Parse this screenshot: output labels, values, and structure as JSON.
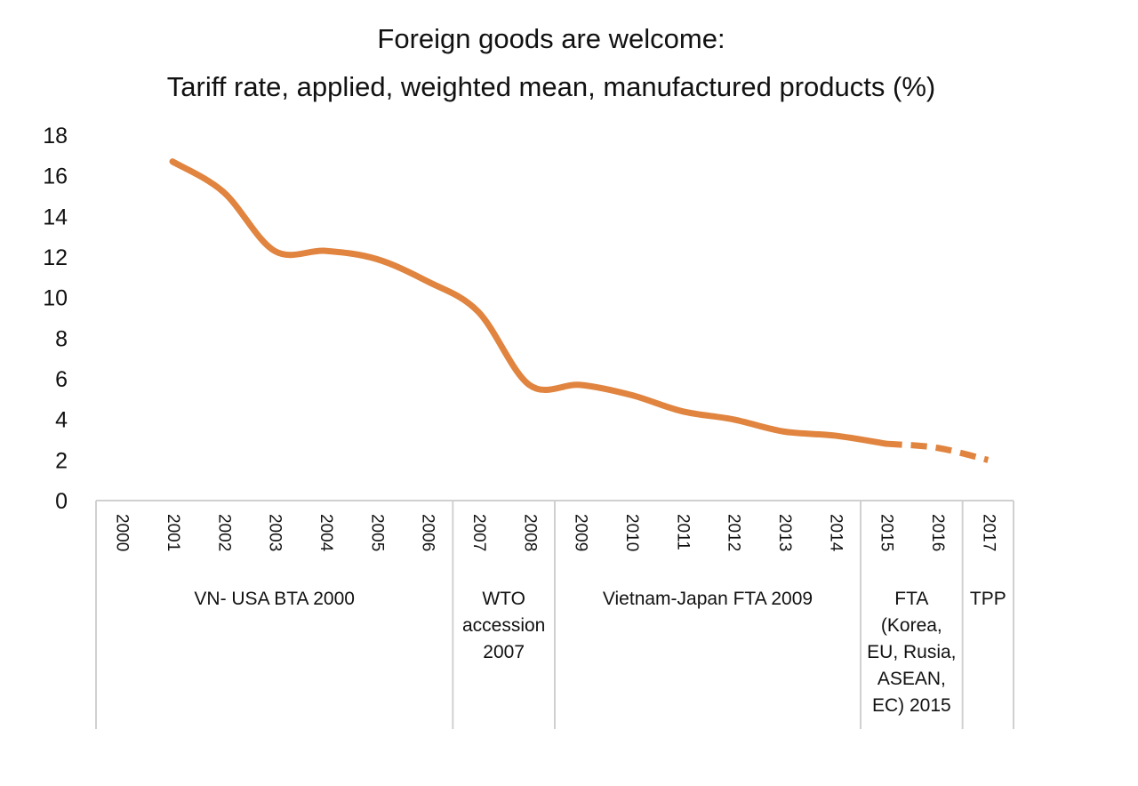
{
  "chart_data": {
    "type": "line",
    "title": [
      "Foreign goods are welcome:",
      "Tariff rate, applied, weighted mean, manufactured products (%)"
    ],
    "xlabel": "",
    "ylabel": "",
    "ylim": [
      0,
      18
    ],
    "yticks": [
      0,
      2,
      4,
      6,
      8,
      10,
      12,
      14,
      16,
      18
    ],
    "grid": false,
    "categories": [
      "2000",
      "2001",
      "2002",
      "2003",
      "2004",
      "2005",
      "2006",
      "2007",
      "2008",
      "2009",
      "2010",
      "2011",
      "2012",
      "2013",
      "2014",
      "2015",
      "2016",
      "2017"
    ],
    "series": [
      {
        "color": "#E0843F",
        "values": [
          null,
          16.7,
          15.2,
          12.3,
          12.3,
          11.9,
          10.8,
          9.3,
          5.7,
          5.7,
          5.2,
          4.4,
          4.0,
          3.4,
          3.2,
          2.8,
          2.6,
          2.0
        ],
        "dashed_from": "2015"
      }
    ],
    "groups": [
      {
        "label": [
          "VN- USA BTA 2000"
        ],
        "from": "2000",
        "to": "2006"
      },
      {
        "label": [
          "WTO",
          "accession",
          "2007"
        ],
        "from": "2007",
        "to": "2008"
      },
      {
        "label": [
          "Vietnam-Japan FTA 2009"
        ],
        "from": "2009",
        "to": "2014"
      },
      {
        "label": [
          "FTA",
          "(Korea,",
          "EU, Rusia,",
          "ASEAN,",
          "EC) 2015"
        ],
        "from": "2015",
        "to": "2016"
      },
      {
        "label": [
          "TPP"
        ],
        "from": "2017",
        "to": "2017"
      }
    ]
  }
}
